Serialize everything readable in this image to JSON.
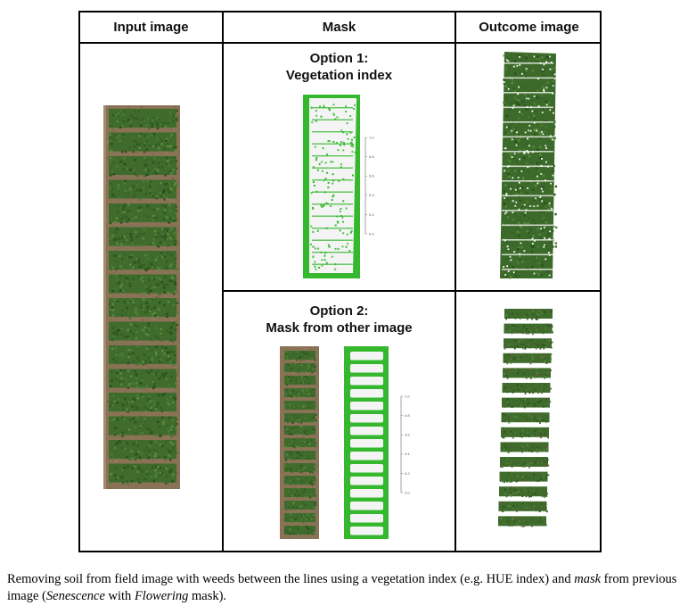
{
  "table": {
    "headers": {
      "input": "Input image",
      "mask": "Mask",
      "outcome": "Outcome image"
    },
    "option1": {
      "line1": "Option 1:",
      "line2": "Vegetation index"
    },
    "option2": {
      "line1": "Option 2:",
      "line2": "Mask from other image"
    },
    "mask_scale_ticks": [
      "1.0",
      "0.8",
      "0.6",
      "0.4",
      "0.2",
      "0.0"
    ]
  },
  "caption": {
    "p1": "Removing soil from field image with weeds between the lines using a vegetation index (e.g. HUE index) and ",
    "p2": "mask",
    "p3": " from previous image (",
    "p4": "Senescence",
    "p5": " with ",
    "p6": "Flowering",
    "p7": " mask)."
  },
  "colors": {
    "soil": "#8a7256",
    "crop": "#3f6b2c",
    "mask_green": "#35b82e",
    "mask_white": "#f4f4f4"
  }
}
